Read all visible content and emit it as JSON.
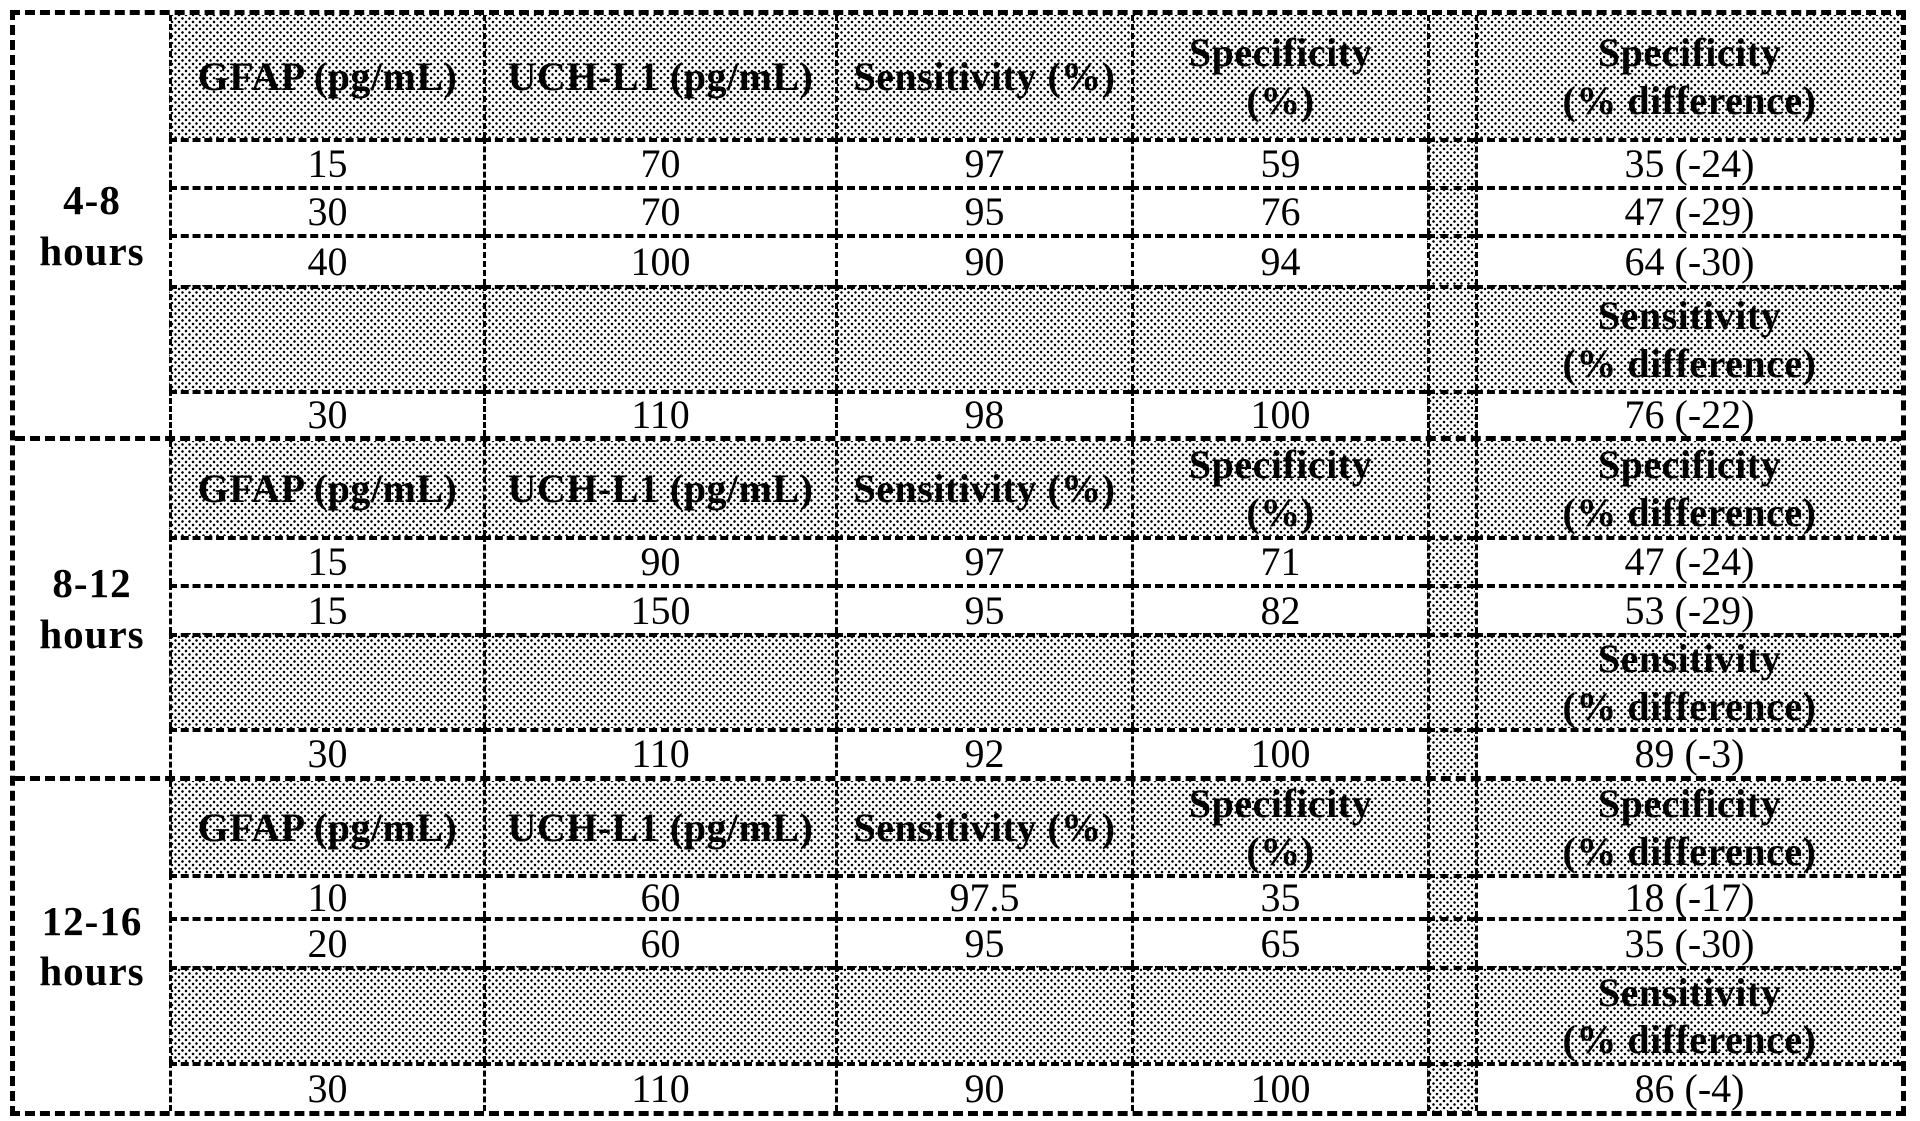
{
  "colors": {
    "ink": "#000000",
    "paper": "#ffffff"
  },
  "columns": {
    "gfap": "GFAP (pg/mL)",
    "uchl1": "UCH-L1 (pg/mL)",
    "sensitivity": "Sensitivity (%)",
    "specificity_l1": "Specificity",
    "specificity_l2": "(%)",
    "spec_diff_l1": "Specificity",
    "spec_diff_l2": "(% difference)"
  },
  "mid_row_label": {
    "l1": "Sensitivity",
    "l2": "(% difference)"
  },
  "sections": [
    {
      "time_window_l1": "4-8",
      "time_window_l2": "hours",
      "rows": [
        [
          "15",
          "70",
          "97",
          "59",
          "35 (-24)"
        ],
        [
          "30",
          "70",
          "95",
          "76",
          "47 (-29)"
        ],
        [
          "40",
          "100",
          "90",
          "94",
          "64 (-30)"
        ]
      ],
      "final_row": [
        "30",
        "110",
        "98",
        "100",
        "76 (-22)"
      ]
    },
    {
      "time_window_l1": "8-12",
      "time_window_l2": "hours",
      "rows": [
        [
          "15",
          "90",
          "97",
          "71",
          "47 (-24)"
        ],
        [
          "15",
          "150",
          "95",
          "82",
          "53 (-29)"
        ]
      ],
      "final_row": [
        "30",
        "110",
        "92",
        "100",
        "89 (-3)"
      ]
    },
    {
      "time_window_l1": "12-16",
      "time_window_l2": "hours",
      "rows": [
        [
          "10",
          "60",
          "97.5",
          "35",
          "18 (-17)"
        ],
        [
          "20",
          "60",
          "95",
          "65",
          "35 (-30)"
        ]
      ],
      "final_row": [
        "30",
        "110",
        "90",
        "100",
        "86 (-4)"
      ]
    }
  ]
}
